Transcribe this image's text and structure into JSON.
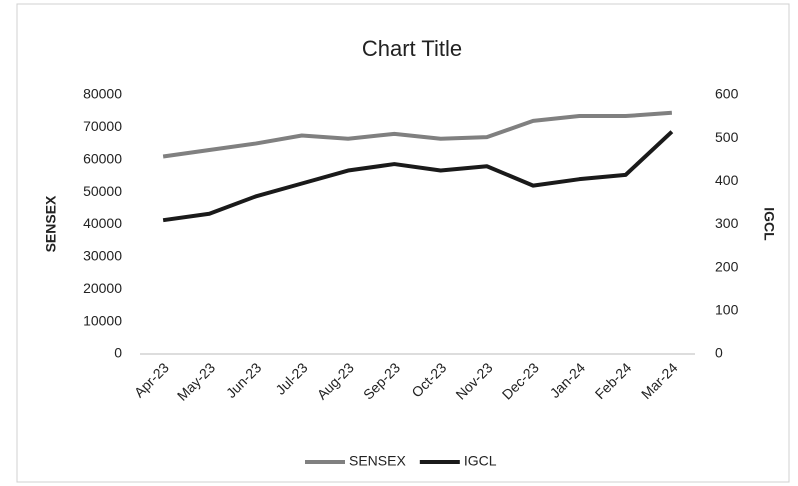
{
  "chart_data": {
    "type": "line",
    "title": "Chart Title",
    "categories": [
      "Apr-23",
      "May-23",
      "Jun-23",
      "Jul-23",
      "Aug-23",
      "Sep-23",
      "Oct-23",
      "Nov-23",
      "Dec-23",
      "Jan-24",
      "Feb-24",
      "Mar-24"
    ],
    "y_label": "SENSEX",
    "y2_label": "IGCL",
    "series": [
      {
        "name": "SENSEX",
        "color": "#808080",
        "values": [
          61000,
          63000,
          65000,
          67500,
          66500,
          68000,
          66500,
          67000,
          72000,
          73500,
          73500,
          74500
        ]
      },
      {
        "name": "IGCL",
        "color": "#1a1a1a",
        "axis": "y2",
        "values": [
          310,
          325,
          365,
          395,
          425,
          440,
          425,
          435,
          390,
          405,
          415,
          515
        ]
      }
    ],
    "ylim": [
      0,
      80000
    ],
    "yticks": [
      0,
      10000,
      20000,
      30000,
      40000,
      50000,
      60000,
      70000,
      80000
    ],
    "y2lim": [
      0,
      600
    ],
    "y2ticks": [
      0,
      100,
      200,
      300,
      400,
      500,
      600
    ],
    "legend": "bottom",
    "grid": false
  }
}
